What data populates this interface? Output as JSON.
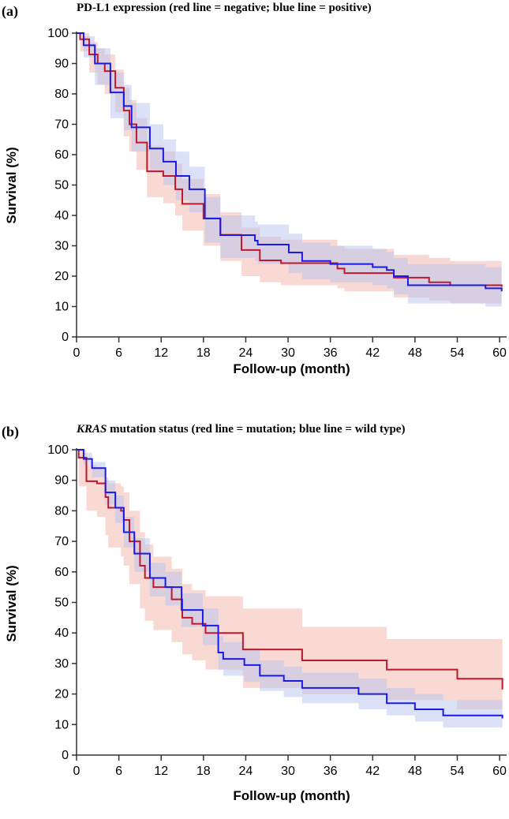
{
  "chart_data": [
    {
      "type": "line",
      "panel_label": "(a)",
      "title": "PD-L1 expression (red line = negative; blue line = positive)",
      "title_italic": "",
      "xlabel": "Follow-up (month)",
      "ylabel": "Survival (%)",
      "xlim": [
        0,
        61
      ],
      "ylim": [
        0,
        100
      ],
      "xticks": [
        0,
        6,
        12,
        18,
        24,
        30,
        36,
        42,
        48,
        54,
        60
      ],
      "yticks": [
        0,
        10,
        20,
        30,
        40,
        50,
        60,
        70,
        80,
        90,
        100
      ],
      "series": [
        {
          "name": "negative",
          "color": "#c0182a",
          "band_color": "#f3b3aa",
          "steps": [
            [
              0,
              100,
              100,
              100
            ],
            [
              0.5,
              98,
              94,
              100
            ],
            [
              1.8,
              93,
              87,
              97
            ],
            [
              3,
              90,
              83,
              95
            ],
            [
              4,
              87.5,
              80,
              93
            ],
            [
              5.5,
              82,
              74,
              88
            ],
            [
              6.7,
              74.5,
              66,
              82
            ],
            [
              7.5,
              70,
              61,
              78
            ],
            [
              8.5,
              64,
              55,
              72
            ],
            [
              10,
              54.5,
              46,
              63
            ],
            [
              12.3,
              53,
              44,
              61
            ],
            [
              14,
              48.6,
              40,
              57
            ],
            [
              15,
              43.8,
              35,
              52
            ],
            [
              18,
              39,
              30,
              47
            ],
            [
              20.4,
              33.6,
              25,
              41
            ],
            [
              23.4,
              28.6,
              20,
              36
            ],
            [
              26,
              25.2,
              18,
              33
            ],
            [
              29,
              24.3,
              17,
              32
            ],
            [
              37,
              22.5,
              16,
              30
            ],
            [
              38,
              21,
              15,
              29
            ],
            [
              45,
              19.5,
              13,
              27
            ],
            [
              50,
              18,
              12,
              26
            ],
            [
              53,
              17,
              11,
              25
            ],
            [
              60.3,
              16.5,
              9,
              25
            ]
          ]
        },
        {
          "name": "positive",
          "color": "#1a1ae6",
          "band_color": "#b7c4ee",
          "steps": [
            [
              0,
              100,
              100,
              100
            ],
            [
              1,
              96,
              92,
              99
            ],
            [
              2.6,
              90,
              83,
              95
            ],
            [
              4.8,
              80.5,
              72,
              87
            ],
            [
              6.7,
              76,
              68,
              83
            ],
            [
              7.8,
              69,
              61,
              77
            ],
            [
              10.4,
              62,
              54,
              70
            ],
            [
              12.3,
              57.7,
              50,
              65
            ],
            [
              14.1,
              53,
              45,
              61
            ],
            [
              16,
              48.6,
              41,
              56
            ],
            [
              18.2,
              39,
              31,
              46
            ],
            [
              20.4,
              33.5,
              26,
              40
            ],
            [
              25.3,
              31.7,
              25,
              38
            ],
            [
              25.7,
              30.4,
              24,
              37
            ],
            [
              30.1,
              27.8,
              21,
              34
            ],
            [
              32,
              25,
              19,
              31
            ],
            [
              36,
              24,
              18,
              30
            ],
            [
              42,
              23,
              17,
              29
            ],
            [
              44,
              22,
              16,
              28
            ],
            [
              45,
              20,
              14,
              26
            ],
            [
              47,
              17,
              11,
              24
            ],
            [
              58,
              16,
              10,
              23
            ],
            [
              60.3,
              15,
              8,
              22
            ]
          ]
        }
      ]
    },
    {
      "type": "line",
      "panel_label": "(b)",
      "title": " mutation status (red line = mutation; blue line = wild type)",
      "title_italic": "KRAS",
      "xlabel": "Follow-up (month)",
      "ylabel": "Survival (%)",
      "xlim": [
        0,
        61
      ],
      "ylim": [
        0,
        100
      ],
      "xticks": [
        0,
        6,
        12,
        18,
        24,
        30,
        36,
        42,
        48,
        54,
        60
      ],
      "yticks": [
        0,
        10,
        20,
        30,
        40,
        50,
        60,
        70,
        80,
        90,
        100
      ],
      "series": [
        {
          "name": "mutation",
          "color": "#c0182a",
          "band_color": "#f3b3aa",
          "steps": [
            [
              0,
              100,
              100,
              100
            ],
            [
              0.3,
              97.4,
              88,
              100
            ],
            [
              1.4,
              89.7,
              80,
              95
            ],
            [
              2.9,
              89,
              78,
              94
            ],
            [
              4.1,
              84.5,
              72,
              91
            ],
            [
              4.5,
              81,
              68,
              89
            ],
            [
              6.3,
              80,
              65,
              88
            ],
            [
              6.7,
              77,
              62,
              86
            ],
            [
              7.5,
              70,
              56,
              80
            ],
            [
              9,
              62,
              48,
              73
            ],
            [
              9.7,
              58,
              44,
              69
            ],
            [
              10.9,
              55,
              41,
              65
            ],
            [
              13.5,
              51,
              37,
              61
            ],
            [
              15,
              45,
              33,
              56
            ],
            [
              16.4,
              43,
              31,
              54
            ],
            [
              18.3,
              40,
              28,
              52
            ],
            [
              23.6,
              34.6,
              22,
              48
            ],
            [
              32,
              31,
              20,
              42
            ],
            [
              44,
              28,
              18,
              38
            ],
            [
              54,
              25,
              15,
              38
            ],
            [
              60.4,
              21.5,
              12,
              35
            ]
          ]
        },
        {
          "name": "wild type",
          "color": "#1a1ae6",
          "band_color": "#b7c4ee",
          "steps": [
            [
              0,
              100,
              100,
              100
            ],
            [
              1,
              97,
              95,
              99
            ],
            [
              2.2,
              94,
              91,
              96
            ],
            [
              4.1,
              86,
              82,
              90
            ],
            [
              5.5,
              81,
              76,
              85
            ],
            [
              6.7,
              73,
              68,
              78
            ],
            [
              8.2,
              66,
              60,
              71
            ],
            [
              10.4,
              58,
              52,
              63
            ],
            [
              12.6,
              55,
              49,
              60
            ],
            [
              14.9,
              47.5,
              42,
              53
            ],
            [
              17.9,
              42.4,
              36,
              48
            ],
            [
              20.1,
              33.6,
              28,
              39
            ],
            [
              20.8,
              31.5,
              26,
              37
            ],
            [
              23.8,
              29.5,
              24,
              35
            ],
            [
              26,
              26,
              21,
              31
            ],
            [
              29.4,
              24.3,
              19,
              29
            ],
            [
              32,
              22,
              17,
              27
            ],
            [
              40,
              20,
              15,
              25
            ],
            [
              44,
              17,
              13,
              22
            ],
            [
              48,
              15,
              11,
              20
            ],
            [
              52,
              13,
              9,
              18
            ],
            [
              60.4,
              12,
              7,
              17
            ]
          ]
        }
      ]
    }
  ]
}
